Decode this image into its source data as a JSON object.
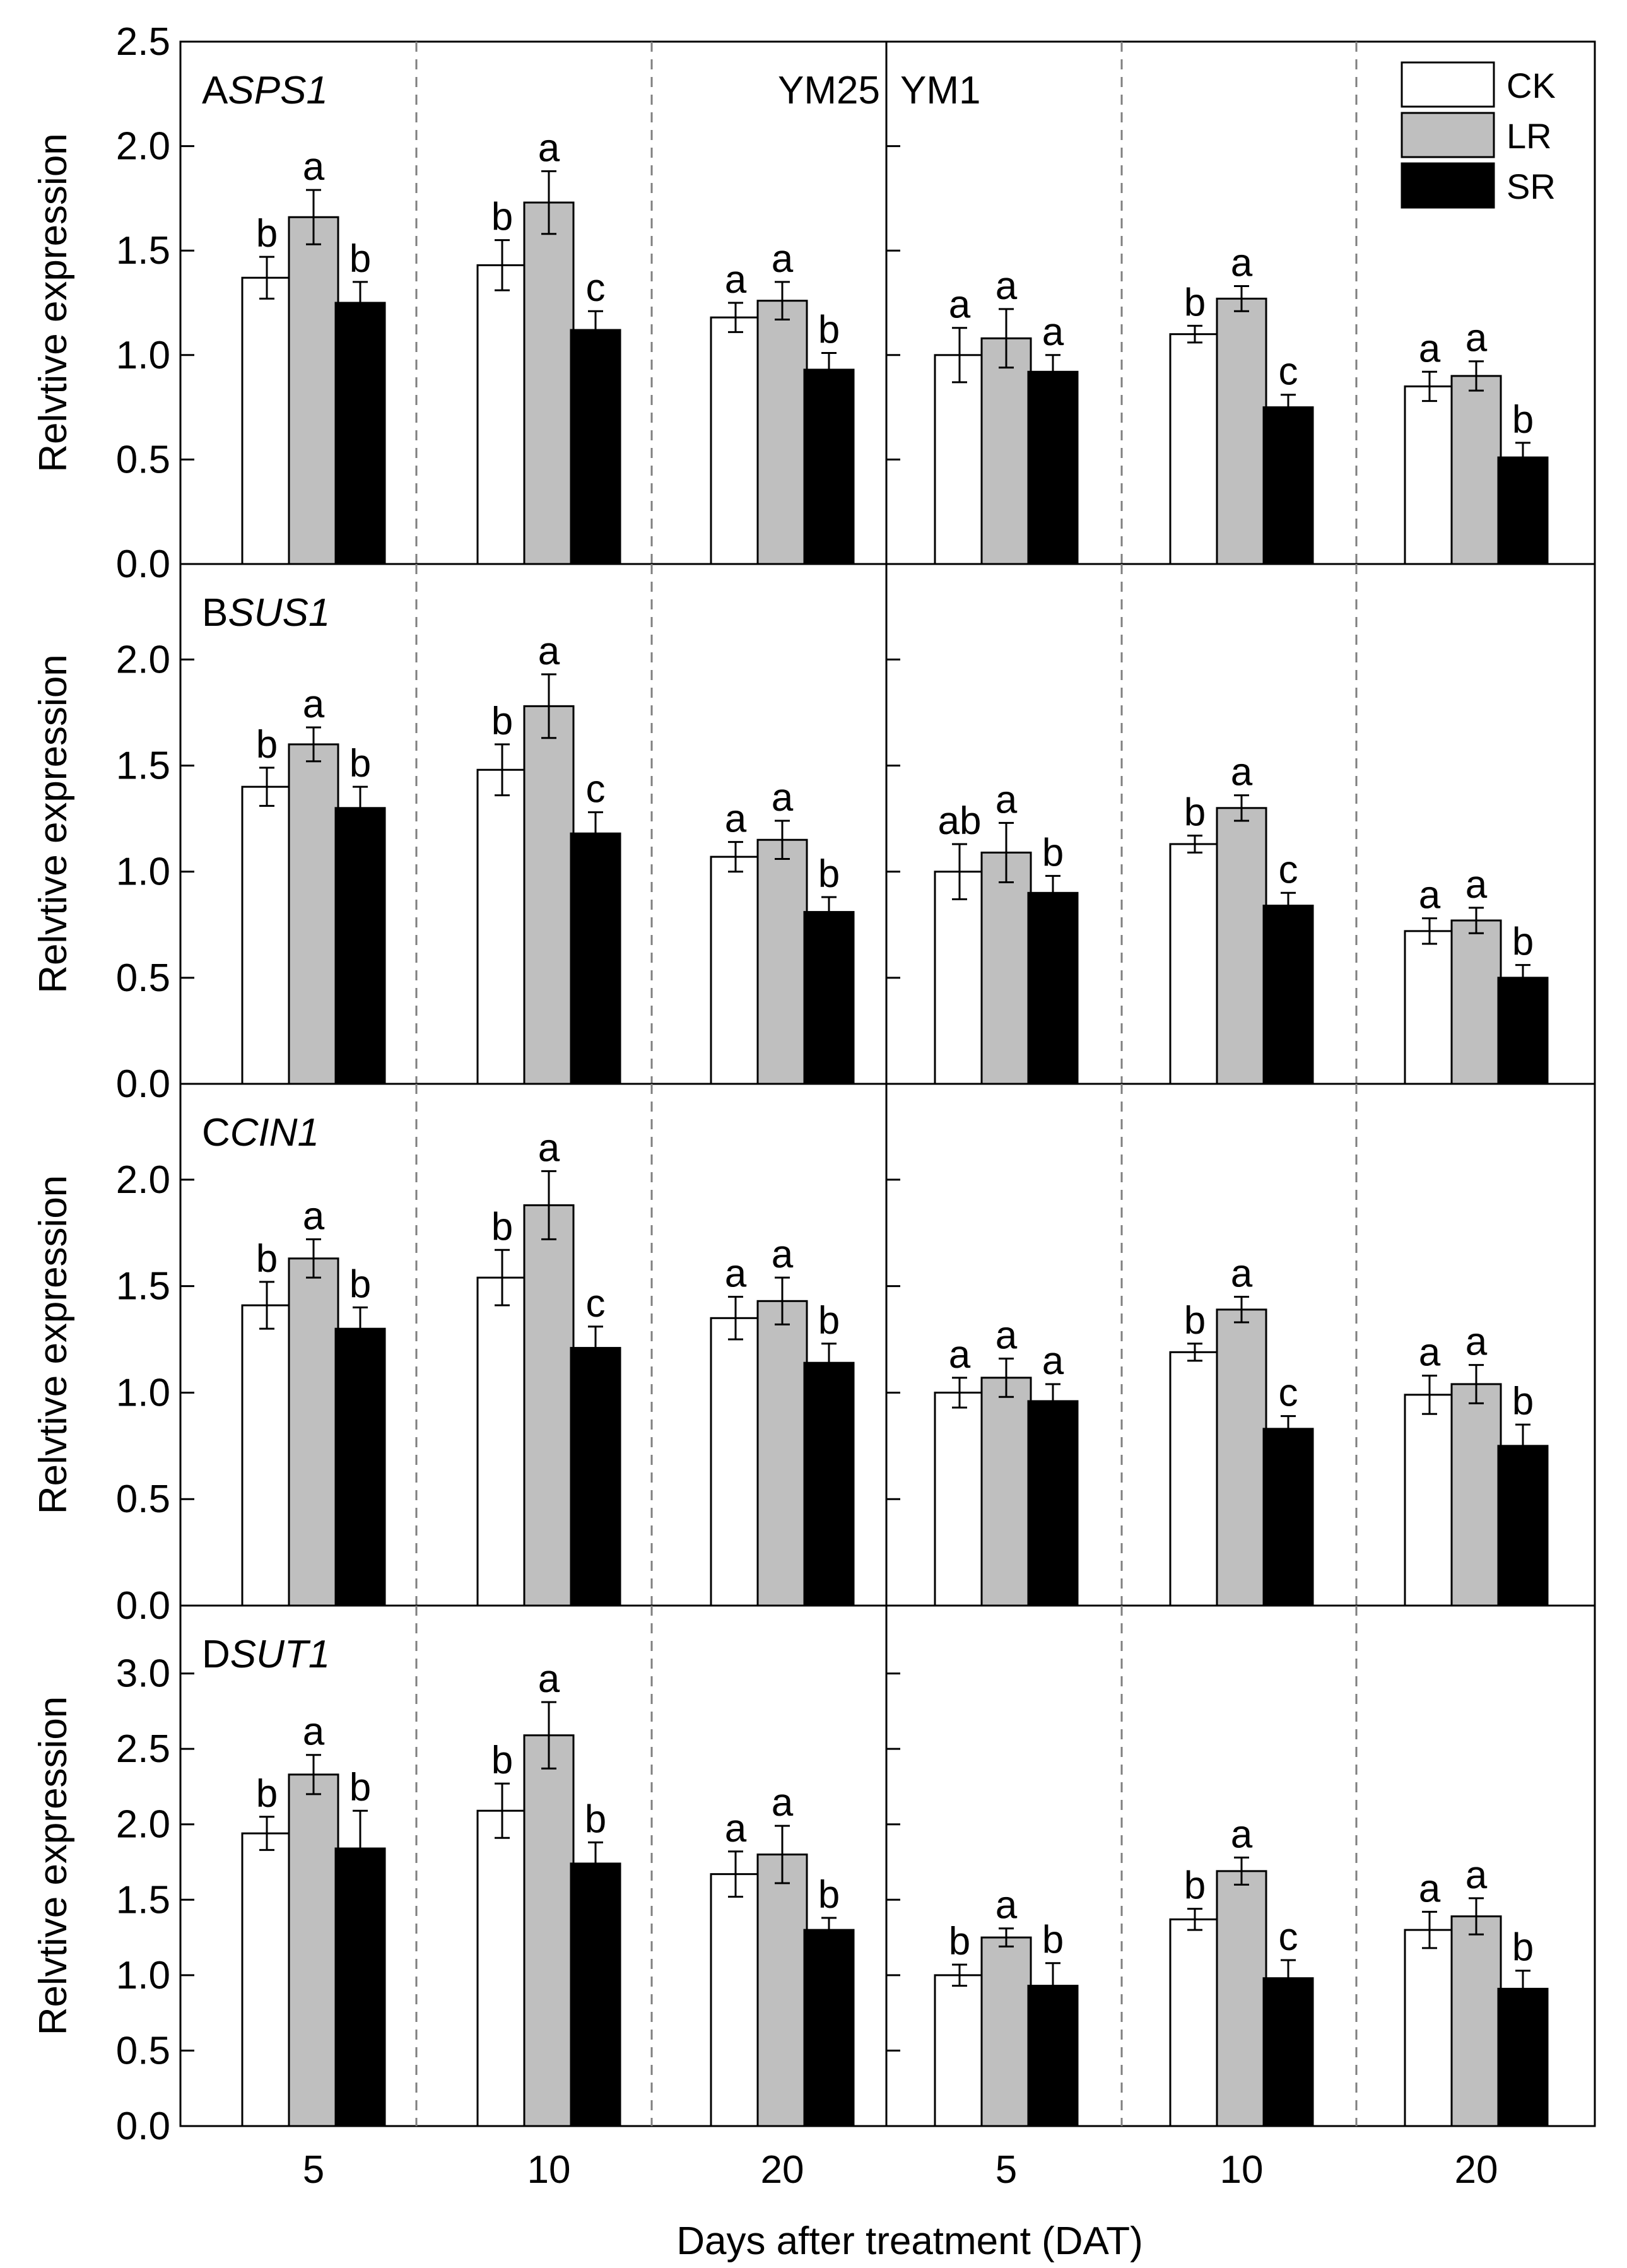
{
  "chart_data": {
    "type": "bar",
    "xlabel": "Days after treatment (DAT)",
    "ylabel": "Relvtive expression",
    "categories": [
      "5",
      "10",
      "20"
    ],
    "varieties": [
      "YM25",
      "YM1"
    ],
    "legend": [
      {
        "name": "CK",
        "color": "#ffffff"
      },
      {
        "name": "LR",
        "color": "#bfbfbf"
      },
      {
        "name": "SR",
        "color": "#000000"
      }
    ],
    "legend_position": "top-right",
    "panels": [
      {
        "label": "A",
        "gene": "SPS1",
        "ylim": [
          0,
          2.5
        ],
        "yticks": [
          "0.0",
          "0.5",
          "1.0",
          "1.5",
          "2.0",
          "2.5"
        ],
        "YM25": {
          "values": [
            [
              1.37,
              1.66,
              1.25
            ],
            [
              1.43,
              1.73,
              1.12
            ],
            [
              1.18,
              1.26,
              0.93
            ]
          ],
          "errors": [
            [
              0.1,
              0.13,
              0.1
            ],
            [
              0.12,
              0.15,
              0.09
            ],
            [
              0.07,
              0.09,
              0.08
            ]
          ],
          "letters": [
            [
              "b",
              "a",
              "b"
            ],
            [
              "b",
              "a",
              "c"
            ],
            [
              "a",
              "a",
              "b"
            ]
          ]
        },
        "YM1": {
          "values": [
            [
              1.0,
              1.08,
              0.92
            ],
            [
              1.1,
              1.27,
              0.75
            ],
            [
              0.85,
              0.9,
              0.51
            ]
          ],
          "errors": [
            [
              0.13,
              0.14,
              0.08
            ],
            [
              0.04,
              0.06,
              0.06
            ],
            [
              0.07,
              0.07,
              0.07
            ]
          ],
          "letters": [
            [
              "a",
              "a",
              "a"
            ],
            [
              "b",
              "a",
              "c"
            ],
            [
              "a",
              "a",
              "b"
            ]
          ]
        }
      },
      {
        "label": "B",
        "gene": "SUS1",
        "ylim": [
          0,
          2.45
        ],
        "yticks": [
          "0.0",
          "0.5",
          "1.0",
          "1.5",
          "2.0"
        ],
        "YM25": {
          "values": [
            [
              1.4,
              1.6,
              1.3
            ],
            [
              1.48,
              1.78,
              1.18
            ],
            [
              1.07,
              1.15,
              0.81
            ]
          ],
          "errors": [
            [
              0.09,
              0.08,
              0.1
            ],
            [
              0.12,
              0.15,
              0.1
            ],
            [
              0.07,
              0.09,
              0.07
            ]
          ],
          "letters": [
            [
              "b",
              "a",
              "b"
            ],
            [
              "b",
              "a",
              "c"
            ],
            [
              "a",
              "a",
              "b"
            ]
          ]
        },
        "YM1": {
          "values": [
            [
              1.0,
              1.09,
              0.9
            ],
            [
              1.13,
              1.3,
              0.84
            ],
            [
              0.72,
              0.77,
              0.5
            ]
          ],
          "errors": [
            [
              0.13,
              0.14,
              0.08
            ],
            [
              0.04,
              0.06,
              0.06
            ],
            [
              0.06,
              0.06,
              0.06
            ]
          ],
          "letters": [
            [
              "ab",
              "a",
              "b"
            ],
            [
              "b",
              "a",
              "c"
            ],
            [
              "a",
              "a",
              "b"
            ]
          ]
        }
      },
      {
        "label": "C",
        "gene": "CIN1",
        "ylim": [
          0,
          2.45
        ],
        "yticks": [
          "0.0",
          "0.5",
          "1.0",
          "1.5",
          "2.0"
        ],
        "YM25": {
          "values": [
            [
              1.41,
              1.63,
              1.3
            ],
            [
              1.54,
              1.88,
              1.21
            ],
            [
              1.35,
              1.43,
              1.14
            ]
          ],
          "errors": [
            [
              0.11,
              0.09,
              0.1
            ],
            [
              0.13,
              0.16,
              0.1
            ],
            [
              0.1,
              0.11,
              0.09
            ]
          ],
          "letters": [
            [
              "b",
              "a",
              "b"
            ],
            [
              "b",
              "a",
              "c"
            ],
            [
              "a",
              "a",
              "b"
            ]
          ]
        },
        "YM1": {
          "values": [
            [
              1.0,
              1.07,
              0.96
            ],
            [
              1.19,
              1.39,
              0.83
            ],
            [
              0.99,
              1.04,
              0.75
            ]
          ],
          "errors": [
            [
              0.07,
              0.09,
              0.08
            ],
            [
              0.04,
              0.06,
              0.06
            ],
            [
              0.09,
              0.09,
              0.1
            ]
          ],
          "letters": [
            [
              "a",
              "a",
              "a"
            ],
            [
              "b",
              "a",
              "c"
            ],
            [
              "a",
              "a",
              "b"
            ]
          ]
        }
      },
      {
        "label": "D",
        "gene": "SUT1",
        "ylim": [
          0,
          3.45
        ],
        "yticks": [
          "0.0",
          "0.5",
          "1.0",
          "1.5",
          "2.0",
          "2.5",
          "3.0"
        ],
        "YM25": {
          "values": [
            [
              1.94,
              2.33,
              1.84
            ],
            [
              2.09,
              2.59,
              1.74
            ],
            [
              1.67,
              1.8,
              1.3
            ]
          ],
          "errors": [
            [
              0.11,
              0.13,
              0.25
            ],
            [
              0.18,
              0.22,
              0.14
            ],
            [
              0.15,
              0.19,
              0.08
            ]
          ],
          "letters": [
            [
              "b",
              "a",
              "b"
            ],
            [
              "b",
              "a",
              "b"
            ],
            [
              "a",
              "a",
              "b"
            ]
          ]
        },
        "YM1": {
          "values": [
            [
              1.0,
              1.25,
              0.93
            ],
            [
              1.37,
              1.69,
              0.98
            ],
            [
              1.3,
              1.39,
              0.91
            ]
          ],
          "errors": [
            [
              0.07,
              0.06,
              0.15
            ],
            [
              0.07,
              0.09,
              0.12
            ],
            [
              0.12,
              0.12,
              0.12
            ]
          ],
          "letters": [
            [
              "b",
              "a",
              "b"
            ],
            [
              "b",
              "a",
              "c"
            ],
            [
              "a",
              "a",
              "b"
            ]
          ]
        }
      }
    ]
  }
}
